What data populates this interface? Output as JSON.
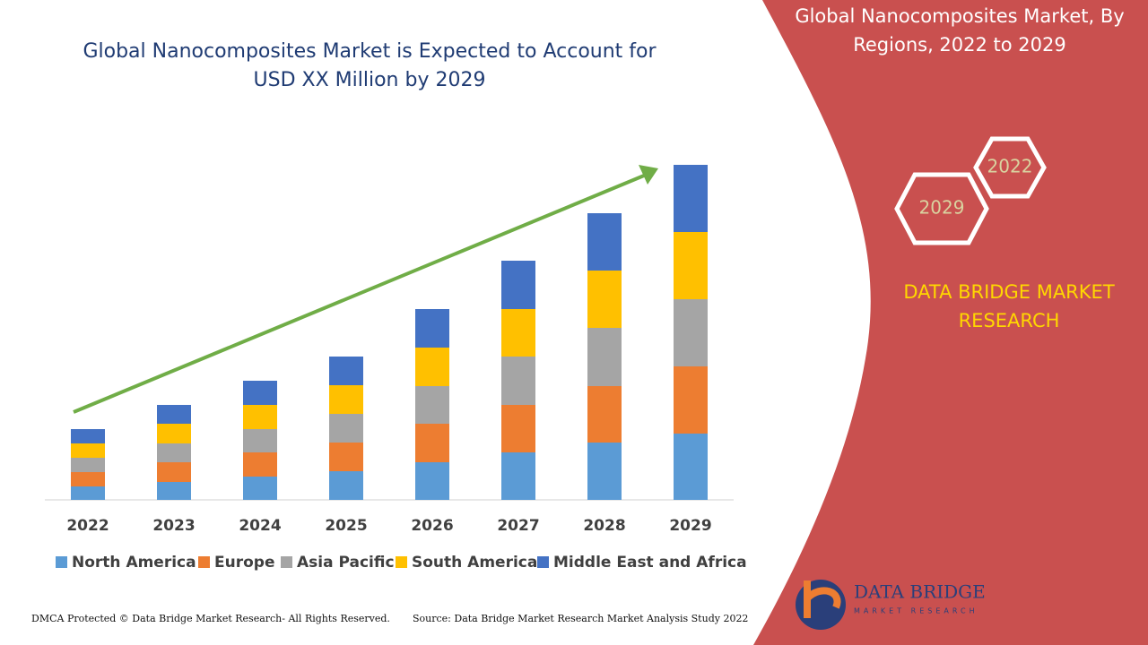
{
  "chart_data": {
    "type": "stacked-bar",
    "title": "Global Nanocomposites Market is Expected to Account for USD XX Million by 2029",
    "categories": [
      "2022",
      "2023",
      "2024",
      "2025",
      "2026",
      "2027",
      "2028",
      "2029"
    ],
    "series": [
      {
        "name": "North America",
        "color": "#5b9bd5",
        "values": [
          15,
          20,
          26,
          32,
          42,
          53,
          64,
          74
        ]
      },
      {
        "name": "Europe",
        "color": "#ed7d31",
        "values": [
          16,
          22,
          27,
          32,
          43,
          53,
          63,
          75
        ]
      },
      {
        "name": "Asia Pacific",
        "color": "#a5a5a5",
        "values": [
          16,
          21,
          26,
          32,
          42,
          54,
          65,
          75
        ]
      },
      {
        "name": "South America",
        "color": "#ffc000",
        "values": [
          16,
          22,
          27,
          32,
          43,
          53,
          64,
          75
        ]
      },
      {
        "name": "Middle East and Africa",
        "color": "#4472c4",
        "values": [
          16,
          21,
          27,
          32,
          43,
          54,
          64,
          75
        ]
      }
    ]
  },
  "panel": {
    "title": "Global Nanocomposites Market, By Regions, 2022 to 2029",
    "hex_labels": [
      "2022",
      "2029"
    ],
    "brand": "DATA BRIDGE MARKET RESEARCH",
    "logo": "DATA BRIDGE",
    "logo_sub": "MARKET RESEARCH"
  },
  "footer": {
    "left": "DMCA Protected © Data Bridge Market Research- All Rights Reserved.",
    "right": "Source: Data Bridge Market Research Market Analysis Study 2022"
  }
}
